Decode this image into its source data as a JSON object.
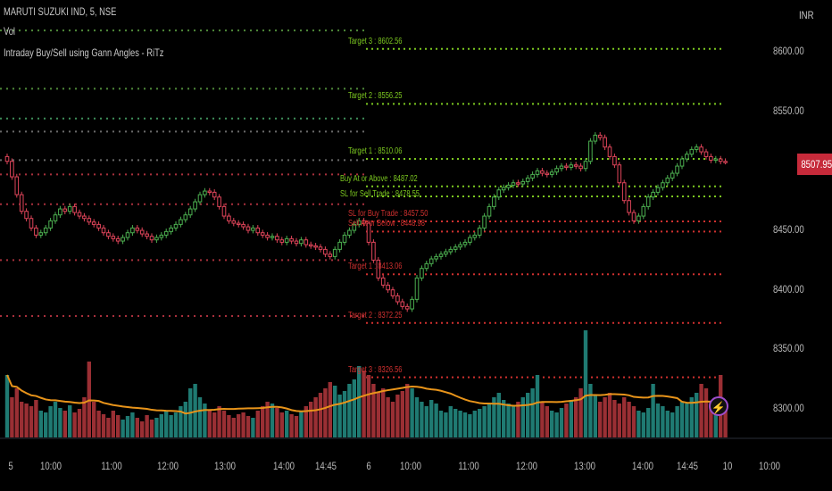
{
  "legend": {
    "symbol": "MARUTI SUZUKI IND, 5, NSE",
    "volume": "Vol",
    "indicator": "Intraday Buy/Sell using Gann Angles - RiTz"
  },
  "price_axis": {
    "currency": "INR",
    "ticks": [
      "8600.00",
      "8550.00",
      "8450.00",
      "8400.00",
      "8350.00",
      "8300.00"
    ],
    "tick_values": [
      8600,
      8550,
      8450,
      8400,
      8350,
      8300
    ],
    "last_price": "8507.95",
    "last_price_color": "#c62a3a"
  },
  "time_axis": {
    "labels": [
      "5",
      "10:00",
      "11:00",
      "12:00",
      "13:00",
      "14:00",
      "14:45",
      "6",
      "10:00",
      "11:00",
      "12:00",
      "13:00",
      "14:00",
      "14:45",
      "10",
      "10:00"
    ]
  },
  "levels": [
    {
      "label": "Target 3 : 8602.56",
      "value": 8602.56,
      "color": "#7cc820"
    },
    {
      "label": "Target 2 : 8556.25",
      "value": 8556.25,
      "color": "#7cc820"
    },
    {
      "label": "Target 1 : 8510.06",
      "value": 8510.06,
      "color": "#7cc820"
    },
    {
      "label": "Buy At or Above : 8487.02",
      "value": 8487.02,
      "color": "#7cc820"
    },
    {
      "label": "SL for Sell Trade : 8478.55",
      "value": 8478.55,
      "color": "#7cc820"
    },
    {
      "label": "SL for Buy Trade : 8457.50",
      "value": 8457.5,
      "color": "#d0302f"
    },
    {
      "label": "Sell At or Below : 8448.98",
      "value": 8448.98,
      "color": "#d0302f"
    },
    {
      "label": "Target 1 : 8413.06",
      "value": 8413.06,
      "color": "#d0302f"
    },
    {
      "label": "Target 2 : 8372.25",
      "value": 8372.25,
      "color": "#d0302f"
    },
    {
      "label": "Target 3 : 8326.56",
      "value": 8326.56,
      "color": "#d0302f"
    }
  ],
  "prior_levels": [
    {
      "value": 8618,
      "color": "#4f8a3a"
    },
    {
      "value": 8569,
      "color": "#4f8a3a"
    },
    {
      "value": 8544,
      "color": "#3f8f5a"
    },
    {
      "value": 8533,
      "color": "#6a6a6a"
    },
    {
      "value": 8509,
      "color": "#6a6a6a"
    },
    {
      "value": 8497,
      "color": "#a8303c"
    },
    {
      "value": 8472,
      "color": "#a8303c"
    },
    {
      "value": 8425,
      "color": "#a8303c"
    },
    {
      "value": 8378,
      "color": "#a8303c"
    }
  ],
  "colors": {
    "up": "#4caf50",
    "down": "#e0455a",
    "vol_up": "#1f7a72",
    "vol_down": "#9a2f34",
    "vol_ma": "#e8941a",
    "background": "#000000"
  },
  "closes": [
    8508,
    8495,
    8480,
    8466,
    8460,
    8452,
    8446,
    8448,
    8452,
    8458,
    8463,
    8468,
    8466,
    8470,
    8465,
    8462,
    8460,
    8457,
    8455,
    8452,
    8448,
    8445,
    8443,
    8441,
    8444,
    8448,
    8452,
    8450,
    8447,
    8445,
    8442,
    8444,
    8446,
    8449,
    8452,
    8455,
    8459,
    8463,
    8468,
    8474,
    8480,
    8483,
    8482,
    8478,
    8470,
    8462,
    8458,
    8456,
    8455,
    8453,
    8450,
    8452,
    8448,
    8446,
    8444,
    8445,
    8442,
    8440,
    8443,
    8441,
    8439,
    8442,
    8438,
    8437,
    8436,
    8434,
    8430,
    8428,
    8434,
    8440,
    8446,
    8450,
    8455,
    8458,
    8456,
    8440,
    8425,
    8410,
    8404,
    8400,
    8395,
    8390,
    8386,
    8384,
    8392,
    8410,
    8418,
    8422,
    8426,
    8428,
    8430,
    8432,
    8434,
    8436,
    8438,
    8440,
    8444,
    8446,
    8452,
    8462,
    8470,
    8478,
    8484,
    8486,
    8488,
    8490,
    8489,
    8491,
    8494,
    8497,
    8500,
    8498,
    8497,
    8499,
    8502,
    8504,
    8503,
    8505,
    8504,
    8502,
    8508,
    8525,
    8530,
    8528,
    8520,
    8512,
    8505,
    8490,
    8475,
    8465,
    8458,
    8462,
    8470,
    8478,
    8482,
    8486,
    8490,
    8494,
    8498,
    8504,
    8510,
    8514,
    8518,
    8520,
    8516,
    8512,
    8509,
    8510,
    8508,
    8507.95
  ],
  "volumes": [
    70,
    45,
    55,
    40,
    38,
    35,
    42,
    30,
    28,
    35,
    40,
    33,
    30,
    36,
    28,
    32,
    45,
    85,
    40,
    30,
    26,
    22,
    30,
    25,
    20,
    24,
    28,
    22,
    18,
    25,
    20,
    22,
    26,
    30,
    25,
    28,
    35,
    40,
    55,
    60,
    45,
    38,
    30,
    28,
    35,
    30,
    25,
    22,
    26,
    28,
    24,
    22,
    30,
    35,
    40,
    38,
    33,
    28,
    30,
    26,
    24,
    30,
    35,
    40,
    45,
    50,
    55,
    62,
    58,
    48,
    52,
    60,
    65,
    80,
    75,
    70,
    60,
    50,
    55,
    45,
    40,
    48,
    52,
    60,
    55,
    45,
    40,
    35,
    42,
    38,
    30,
    28,
    35,
    32,
    30,
    28,
    26,
    30,
    32,
    35,
    38,
    45,
    50,
    42,
    38,
    35,
    40,
    45,
    50,
    55,
    70,
    40,
    35,
    30,
    28,
    33,
    38,
    42,
    45,
    55,
    120,
    60,
    48,
    40,
    45,
    50,
    42,
    38,
    45,
    40,
    35,
    30,
    28,
    33,
    60,
    38,
    35,
    30,
    28,
    35,
    40,
    38,
    45,
    50,
    60,
    55,
    40,
    45,
    70,
    35
  ]
}
